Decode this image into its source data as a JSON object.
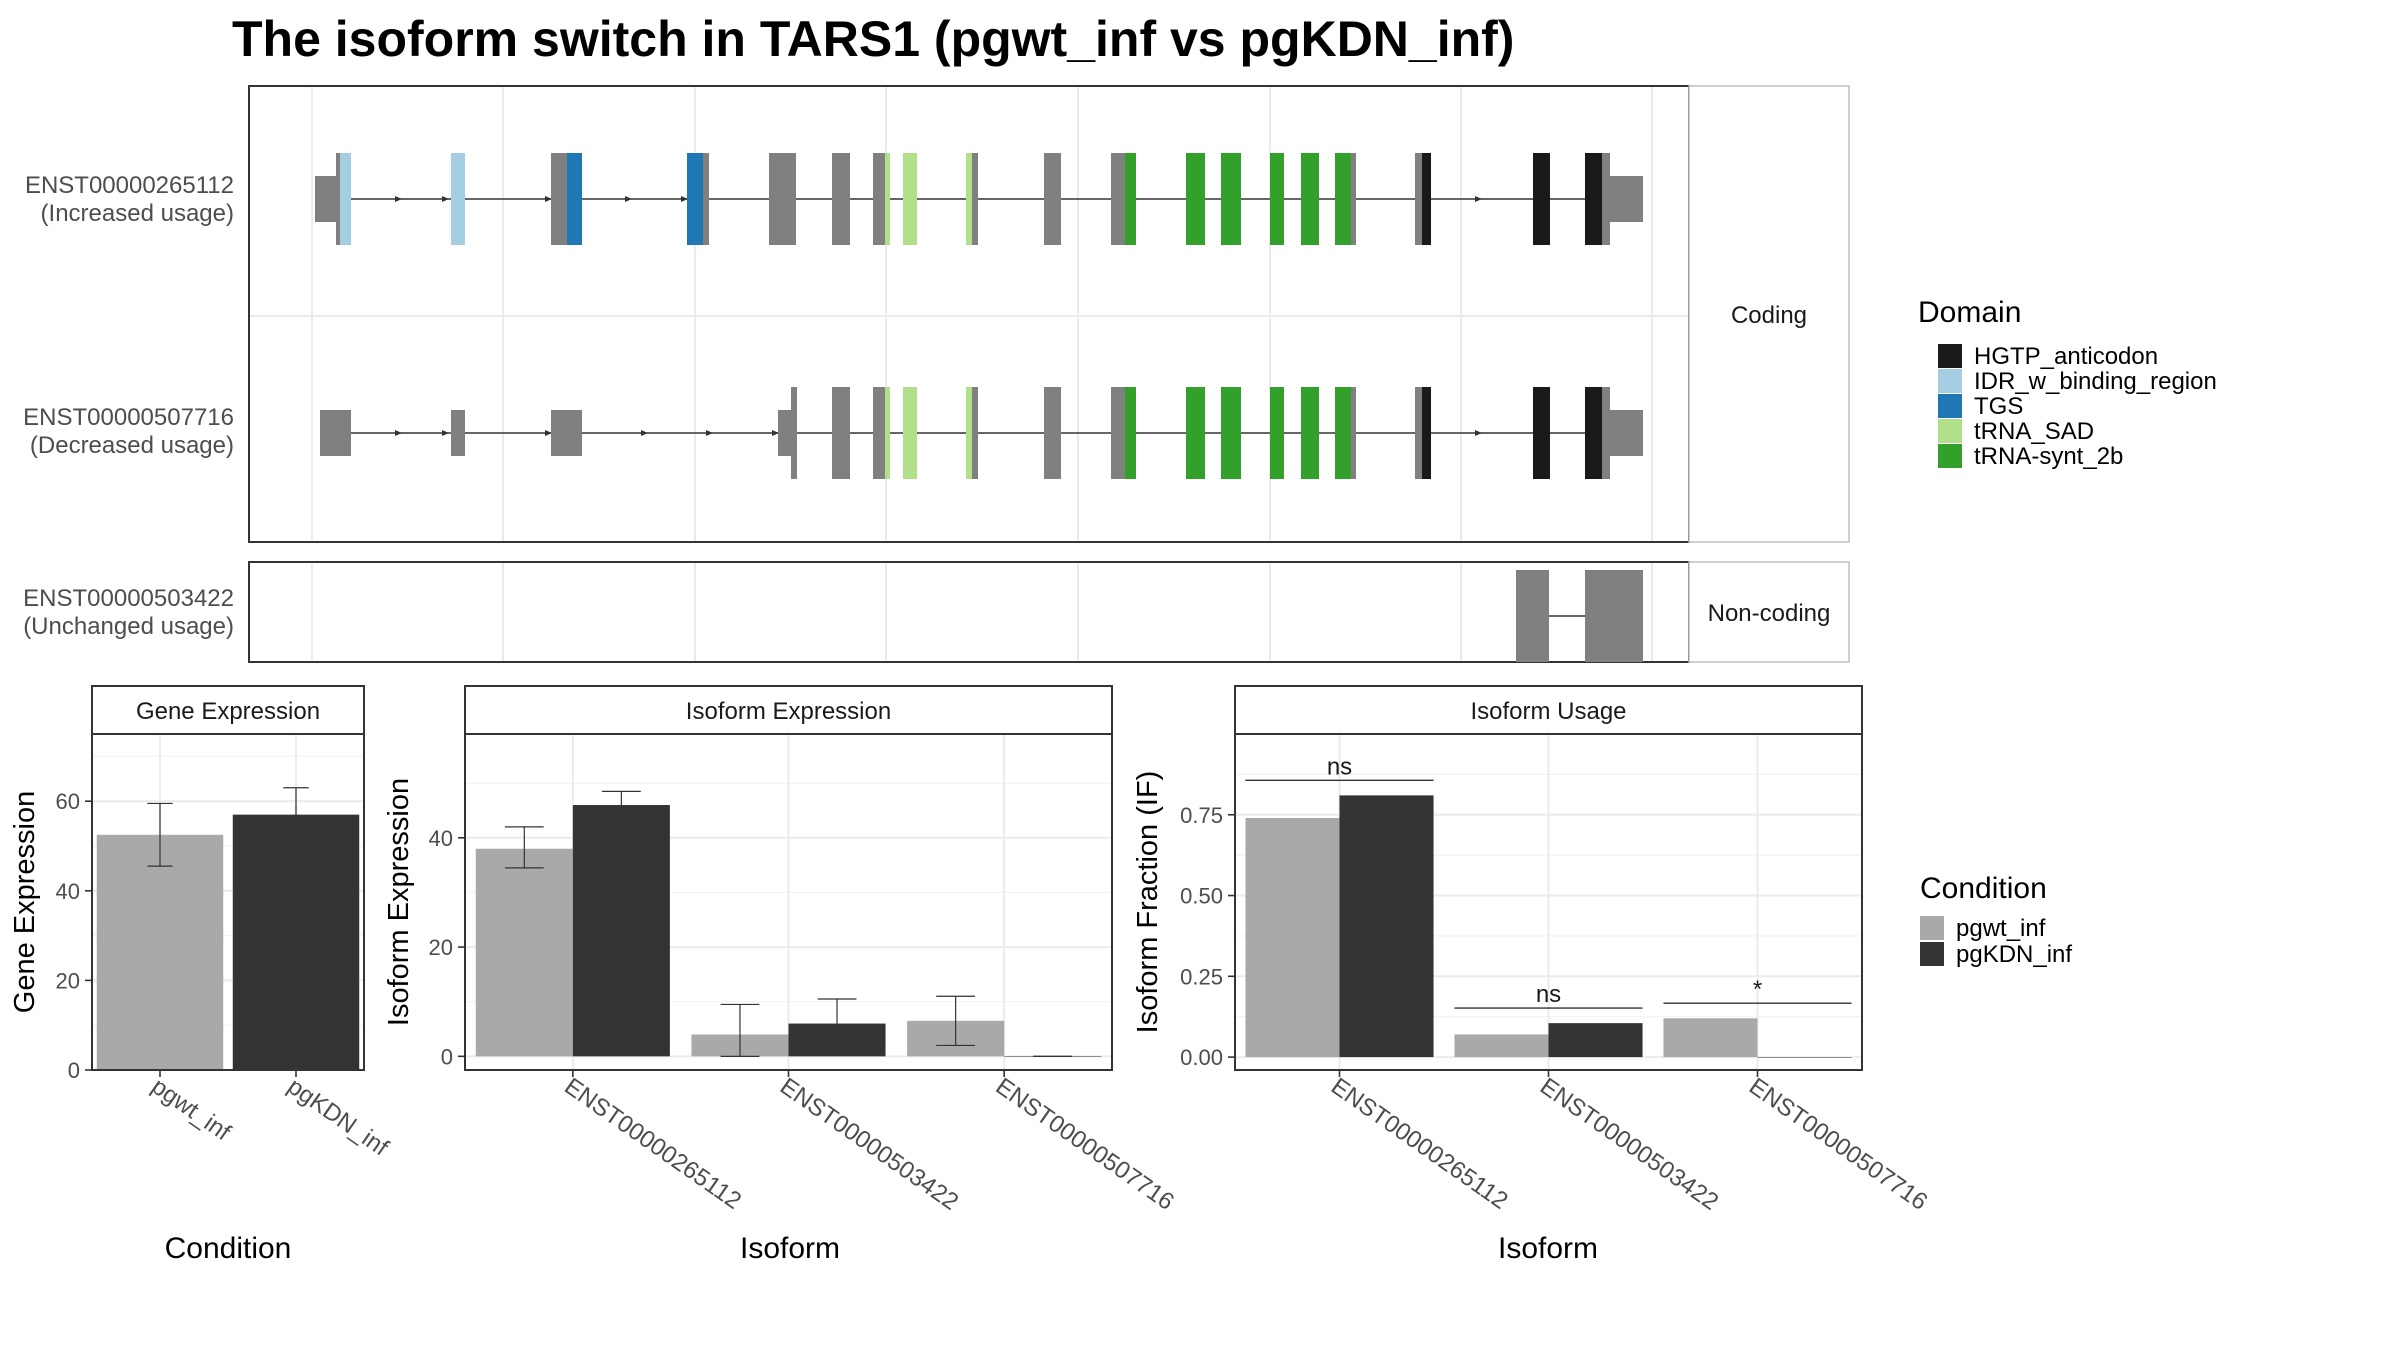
{
  "title": "The isoform switch in TARS1 (pgwt_inf vs pgKDN_inf)",
  "colors": {
    "gray_exon": "#808080",
    "pgwt_inf": "#A9A9A9",
    "pgKDN_inf": "#333333",
    "HGTP_anticodon": "#1a1a1a",
    "IDR_w_binding_region": "#a6cee3",
    "TGS": "#1f78b4",
    "tRNA_SAD": "#b2df8a",
    "tRNA-synt_2b": "#33a02c"
  },
  "structure": {
    "facets": [
      "Coding",
      "Non-coding"
    ],
    "transcripts": [
      {
        "id": "ENST00000265112",
        "usage": "(Increased usage)",
        "facet": "Coding"
      },
      {
        "id": "ENST00000507716",
        "usage": "(Decreased usage)",
        "facet": "Coding"
      },
      {
        "id": "ENST00000503422",
        "usage": "(Unchanged usage)",
        "facet": "Non-coding"
      }
    ],
    "domain_legend": {
      "title": "Domain",
      "entries": [
        "HGTP_anticodon",
        "IDR_w_binding_region",
        "TGS",
        "tRNA_SAD",
        "tRNA-synt_2b"
      ]
    }
  },
  "chart_data": [
    {
      "type": "bar",
      "panel": "Gene Expression",
      "xlabel": "Condition",
      "ylabel": "Gene Expression",
      "categories": [
        "pgwt_inf",
        "pgKDN_inf"
      ],
      "values": [
        52.5,
        57.0
      ],
      "error": [
        [
          45.5,
          59.5
        ],
        [
          51.0,
          63.0
        ]
      ],
      "ylim": [
        0,
        75
      ],
      "yticks": [
        0,
        20,
        40,
        60
      ]
    },
    {
      "type": "bar",
      "panel": "Isoform Expression",
      "xlabel": "Isoform",
      "ylabel": "Isoform Expression",
      "categories": [
        "ENST00000265112",
        "ENST00000503422",
        "ENST00000507716"
      ],
      "series": [
        {
          "name": "pgwt_inf",
          "values": [
            38.0,
            4.0,
            6.5
          ],
          "error": [
            [
              34.5,
              42.0
            ],
            [
              0.0,
              9.5
            ],
            [
              2.0,
              11.0
            ]
          ]
        },
        {
          "name": "pgKDN_inf",
          "values": [
            46.0,
            6.0,
            0.0
          ],
          "error": [
            [
              43.5,
              48.5
            ],
            [
              2.0,
              10.5
            ],
            [
              0.0,
              0.0
            ]
          ]
        }
      ],
      "ylim": [
        -2.5,
        59
      ],
      "yticks": [
        0,
        20,
        40
      ]
    },
    {
      "type": "bar",
      "panel": "Isoform Usage",
      "xlabel": "Isoform",
      "ylabel": "Isoform Fraction (IF)",
      "categories": [
        "ENST00000265112",
        "ENST00000503422",
        "ENST00000507716"
      ],
      "series": [
        {
          "name": "pgwt_inf",
          "values": [
            0.74,
            0.07,
            0.12
          ]
        },
        {
          "name": "pgKDN_inf",
          "values": [
            0.81,
            0.105,
            0.0
          ]
        }
      ],
      "significance": [
        "ns",
        "ns",
        "*"
      ],
      "ylim": [
        -0.04,
        1.0
      ],
      "yticks": [
        0.0,
        0.25,
        0.5,
        0.75
      ],
      "ytick_labels": [
        "0.00",
        "0.25",
        "0.50",
        "0.75"
      ]
    }
  ],
  "condition_legend": {
    "title": "Condition",
    "entries": [
      "pgwt_inf",
      "pgKDN_inf"
    ]
  }
}
